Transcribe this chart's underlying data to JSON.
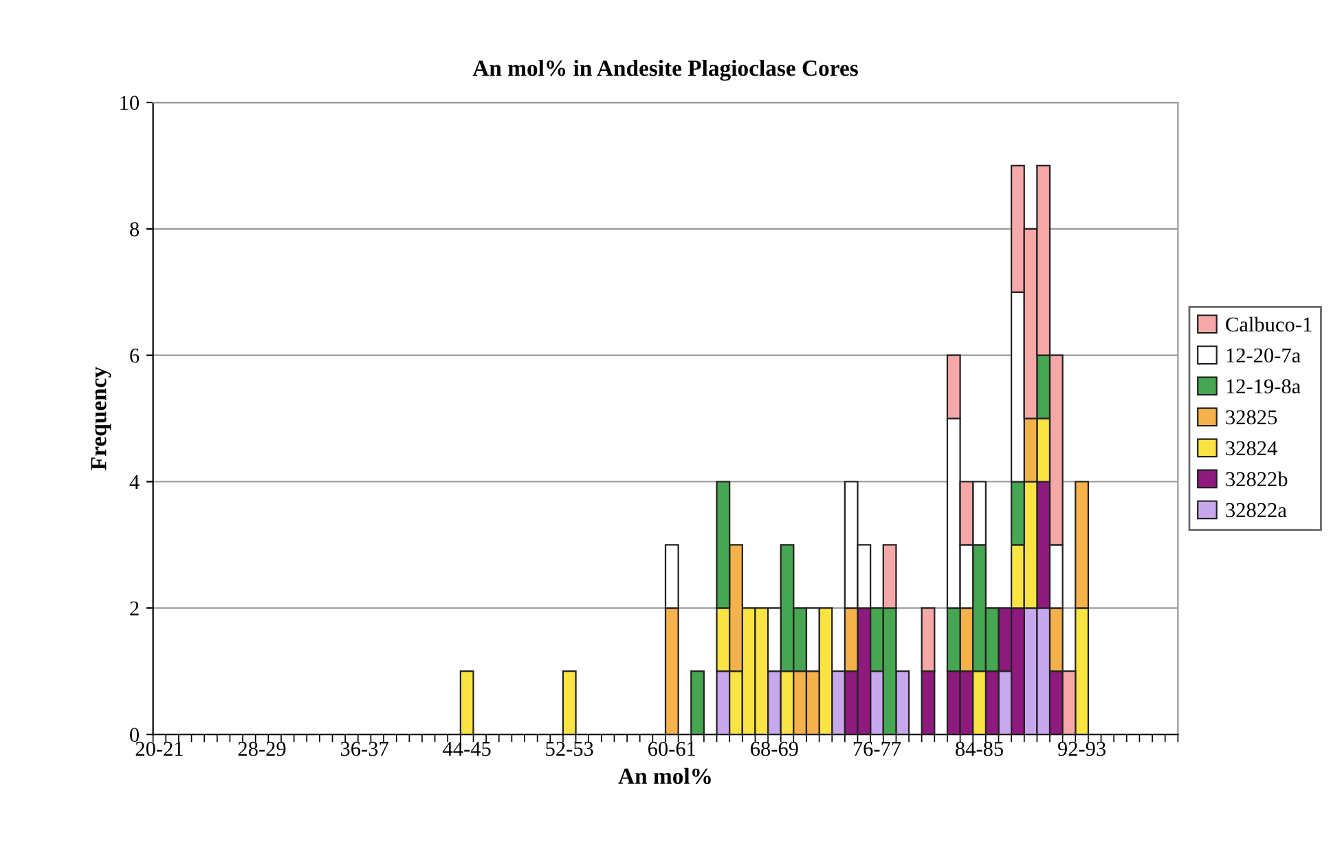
{
  "chart_data": {
    "type": "bar",
    "stacked": true,
    "title": "An mol% in Andesite Plagioclase Cores",
    "xlabel": "An mol%",
    "ylabel": "Frequency",
    "categories": [
      "20-21",
      null,
      null,
      null,
      null,
      null,
      null,
      null,
      "28-29",
      null,
      null,
      null,
      null,
      null,
      null,
      null,
      "36-37",
      null,
      null,
      null,
      null,
      null,
      null,
      null,
      "44-45",
      null,
      null,
      null,
      null,
      null,
      null,
      null,
      "52-53",
      null,
      null,
      null,
      null,
      null,
      null,
      null,
      "60-61",
      null,
      null,
      null,
      null,
      null,
      null,
      null,
      "68-69",
      null,
      null,
      null,
      null,
      null,
      null,
      null,
      "76-77",
      null,
      null,
      null,
      null,
      null,
      null,
      null,
      "84-85",
      null,
      null,
      null,
      null,
      null,
      null,
      null,
      "92-93",
      null,
      null,
      null,
      null,
      null,
      null,
      null
    ],
    "series": [
      {
        "name": "32822a",
        "color": "#c8a8ec",
        "values": [
          0,
          0,
          0,
          0,
          0,
          0,
          0,
          0,
          0,
          0,
          0,
          0,
          0,
          0,
          0,
          0,
          0,
          0,
          0,
          0,
          0,
          0,
          0,
          0,
          0,
          0,
          0,
          0,
          0,
          0,
          0,
          0,
          0,
          0,
          0,
          0,
          0,
          0,
          0,
          0,
          0,
          0,
          0,
          0,
          1,
          0,
          0,
          0,
          1,
          0,
          0,
          0,
          0,
          1,
          0,
          0,
          1,
          0,
          1,
          0,
          0,
          0,
          0,
          0,
          0,
          0,
          1,
          0,
          2,
          2,
          0,
          0,
          0,
          0,
          0,
          0,
          0,
          0,
          0,
          0
        ]
      },
      {
        "name": "32822b",
        "color": "#8e1a7e",
        "values": [
          0,
          0,
          0,
          0,
          0,
          0,
          0,
          0,
          0,
          0,
          0,
          0,
          0,
          0,
          0,
          0,
          0,
          0,
          0,
          0,
          0,
          0,
          0,
          0,
          0,
          0,
          0,
          0,
          0,
          0,
          0,
          0,
          0,
          0,
          0,
          0,
          0,
          0,
          0,
          0,
          0,
          0,
          0,
          0,
          0,
          0,
          0,
          0,
          0,
          0,
          0,
          0,
          0,
          0,
          1,
          2,
          0,
          0,
          0,
          0,
          1,
          0,
          1,
          1,
          0,
          1,
          1,
          2,
          0,
          2,
          1,
          0,
          0,
          0,
          0,
          0,
          0,
          0,
          0,
          0
        ]
      },
      {
        "name": "32824",
        "color": "#f9e443",
        "values": [
          0,
          0,
          0,
          0,
          0,
          0,
          0,
          0,
          0,
          0,
          0,
          0,
          0,
          0,
          0,
          0,
          0,
          0,
          0,
          0,
          0,
          0,
          0,
          0,
          1,
          0,
          0,
          0,
          0,
          0,
          0,
          0,
          1,
          0,
          0,
          0,
          0,
          0,
          0,
          0,
          0,
          0,
          0,
          0,
          1,
          1,
          2,
          2,
          0,
          1,
          0,
          0,
          2,
          0,
          0,
          0,
          0,
          0,
          0,
          0,
          0,
          0,
          0,
          0,
          1,
          0,
          0,
          1,
          2,
          1,
          0,
          0,
          2,
          0,
          0,
          0,
          0,
          0,
          0,
          0
        ]
      },
      {
        "name": "32825",
        "color": "#f6b24a",
        "values": [
          0,
          0,
          0,
          0,
          0,
          0,
          0,
          0,
          0,
          0,
          0,
          0,
          0,
          0,
          0,
          0,
          0,
          0,
          0,
          0,
          0,
          0,
          0,
          0,
          0,
          0,
          0,
          0,
          0,
          0,
          0,
          0,
          0,
          0,
          0,
          0,
          0,
          0,
          0,
          0,
          2,
          0,
          0,
          0,
          0,
          2,
          0,
          0,
          0,
          0,
          1,
          1,
          0,
          0,
          1,
          0,
          0,
          0,
          0,
          0,
          0,
          0,
          0,
          1,
          0,
          0,
          0,
          0,
          1,
          0,
          1,
          0,
          2,
          0,
          0,
          0,
          0,
          0,
          0,
          0
        ]
      },
      {
        "name": "12-19-8a",
        "color": "#46a651",
        "values": [
          0,
          0,
          0,
          0,
          0,
          0,
          0,
          0,
          0,
          0,
          0,
          0,
          0,
          0,
          0,
          0,
          0,
          0,
          0,
          0,
          0,
          0,
          0,
          0,
          0,
          0,
          0,
          0,
          0,
          0,
          0,
          0,
          0,
          0,
          0,
          0,
          0,
          0,
          0,
          0,
          0,
          0,
          1,
          0,
          2,
          0,
          0,
          0,
          0,
          2,
          1,
          0,
          0,
          0,
          0,
          0,
          1,
          2,
          0,
          0,
          0,
          0,
          1,
          0,
          2,
          1,
          0,
          1,
          0,
          1,
          0,
          0,
          0,
          0,
          0,
          0,
          0,
          0,
          0,
          0
        ]
      },
      {
        "name": "12-20-7a",
        "color": "#ffffff",
        "values": [
          0,
          0,
          0,
          0,
          0,
          0,
          0,
          0,
          0,
          0,
          0,
          0,
          0,
          0,
          0,
          0,
          0,
          0,
          0,
          0,
          0,
          0,
          0,
          0,
          0,
          0,
          0,
          0,
          0,
          0,
          0,
          0,
          0,
          0,
          0,
          0,
          0,
          0,
          0,
          0,
          1,
          0,
          0,
          0,
          0,
          0,
          0,
          0,
          1,
          0,
          0,
          1,
          0,
          0,
          2,
          1,
          0,
          0,
          0,
          0,
          0,
          0,
          3,
          1,
          1,
          0,
          0,
          3,
          0,
          0,
          1,
          0,
          0,
          0,
          0,
          0,
          0,
          0,
          0,
          0
        ]
      },
      {
        "name": "Calbuco-1",
        "color": "#f6a8a8",
        "values": [
          0,
          0,
          0,
          0,
          0,
          0,
          0,
          0,
          0,
          0,
          0,
          0,
          0,
          0,
          0,
          0,
          0,
          0,
          0,
          0,
          0,
          0,
          0,
          0,
          0,
          0,
          0,
          0,
          0,
          0,
          0,
          0,
          0,
          0,
          0,
          0,
          0,
          0,
          0,
          0,
          0,
          0,
          0,
          0,
          0,
          0,
          0,
          0,
          0,
          0,
          0,
          0,
          0,
          0,
          0,
          0,
          0,
          1,
          0,
          0,
          1,
          0,
          1,
          1,
          0,
          0,
          0,
          2,
          3,
          3,
          3,
          1,
          0,
          0,
          0,
          0,
          0,
          0,
          0,
          0
        ]
      }
    ],
    "ylim": [
      0,
      10
    ],
    "yticks": [
      0,
      2,
      4,
      6,
      8,
      10
    ],
    "grid": "y",
    "legend": "right"
  }
}
